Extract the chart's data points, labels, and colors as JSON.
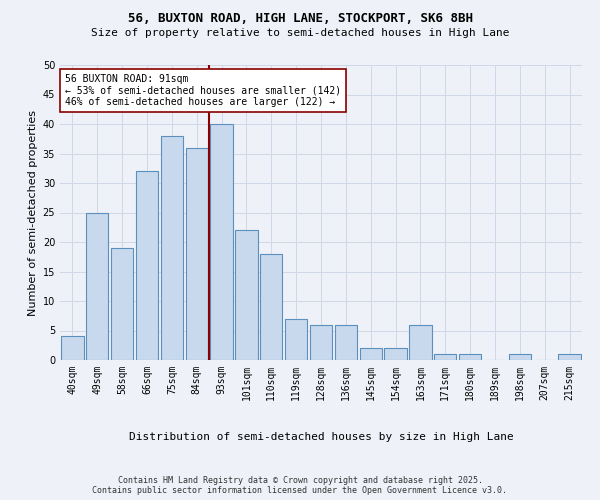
{
  "title1": "56, BUXTON ROAD, HIGH LANE, STOCKPORT, SK6 8BH",
  "title2": "Size of property relative to semi-detached houses in High Lane",
  "xlabel": "Distribution of semi-detached houses by size in High Lane",
  "ylabel": "Number of semi-detached properties",
  "categories": [
    "40sqm",
    "49sqm",
    "58sqm",
    "66sqm",
    "75sqm",
    "84sqm",
    "93sqm",
    "101sqm",
    "110sqm",
    "119sqm",
    "128sqm",
    "136sqm",
    "145sqm",
    "154sqm",
    "163sqm",
    "171sqm",
    "180sqm",
    "189sqm",
    "198sqm",
    "207sqm",
    "215sqm"
  ],
  "values": [
    4,
    25,
    19,
    32,
    38,
    36,
    40,
    22,
    18,
    7,
    6,
    6,
    2,
    2,
    6,
    1,
    1,
    0,
    1,
    0,
    1
  ],
  "bar_color": "#c9d9ed",
  "bar_edge_color": "#5b8fbe",
  "vline_index": 6,
  "vline_color": "#8b0000",
  "annotation_text": "56 BUXTON ROAD: 91sqm\n← 53% of semi-detached houses are smaller (142)\n46% of semi-detached houses are larger (122) →",
  "annotation_box_color": "#ffffff",
  "annotation_box_edge": "#8b0000",
  "ylim": [
    0,
    50
  ],
  "yticks": [
    0,
    5,
    10,
    15,
    20,
    25,
    30,
    35,
    40,
    45,
    50
  ],
  "grid_color": "#d0d8e8",
  "background_color": "#eef2f8",
  "footer": "Contains HM Land Registry data © Crown copyright and database right 2025.\nContains public sector information licensed under the Open Government Licence v3.0.",
  "title_fontsize": 9,
  "subtitle_fontsize": 8,
  "axis_label_fontsize": 8,
  "tick_fontsize": 7,
  "annotation_fontsize": 7,
  "footer_fontsize": 6
}
